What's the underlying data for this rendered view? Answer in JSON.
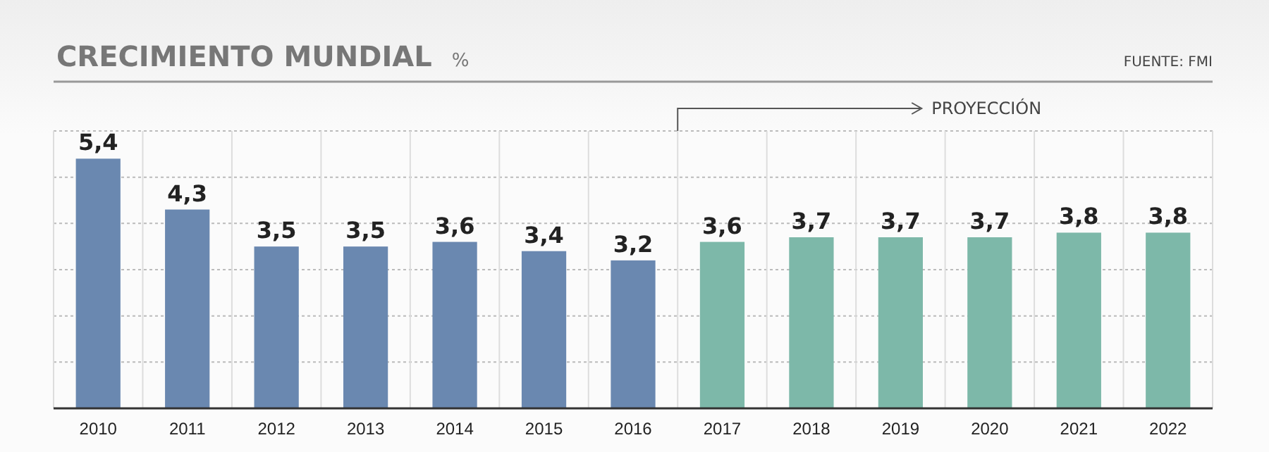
{
  "chart_data": {
    "type": "bar",
    "title": "CRECIMIENTO MUNDIAL",
    "ylabel": "%",
    "categories": [
      "2010",
      "2011",
      "2012",
      "2013",
      "2014",
      "2015",
      "2016",
      "2017",
      "2018",
      "2019",
      "2020",
      "2021",
      "2022"
    ],
    "values": [
      5.4,
      4.3,
      3.5,
      3.5,
      3.6,
      3.4,
      3.2,
      3.6,
      3.7,
      3.7,
      3.7,
      3.8,
      3.8
    ],
    "colors": [
      "#6a88b0",
      "#6a88b0",
      "#6a88b0",
      "#6a88b0",
      "#6a88b0",
      "#6a88b0",
      "#6a88b0",
      "#7db8a9",
      "#7db8a9",
      "#7db8a9",
      "#7db8a9",
      "#7db8a9",
      "#7db8a9"
    ],
    "value_labels": [
      "5,4",
      "4,3",
      "3,5",
      "3,5",
      "3,6",
      "3,4",
      "3,2",
      "3,6",
      "3,7",
      "3,7",
      "3,7",
      "3,8",
      "3,8"
    ],
    "grid": true,
    "tick_labels": "x",
    "annotations": [
      "FUENTE: FMI",
      "PROYECCIÓN"
    ]
  }
}
